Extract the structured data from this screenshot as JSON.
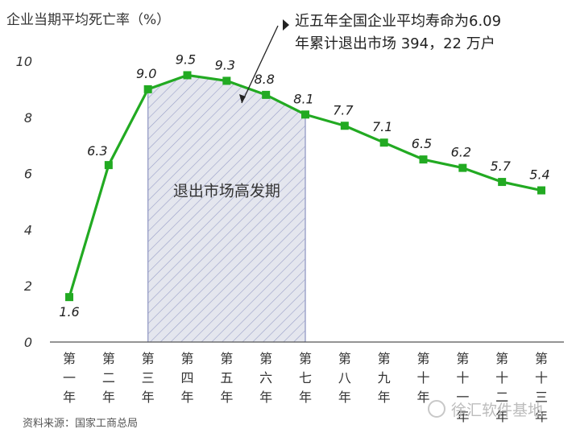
{
  "chart_data": {
    "type": "line",
    "ylabel": "企业当期平均死亡率（%）",
    "ylim": [
      0,
      10
    ],
    "yticks": [
      "0",
      "2",
      "4",
      "6",
      "8",
      "10"
    ],
    "categories": [
      "第一年",
      "第二年",
      "第三年",
      "第四年",
      "第五年",
      "第六年",
      "第七年",
      "第八年",
      "第九年",
      "第十年",
      "第十一年",
      "第十二年",
      "第十三年"
    ],
    "category_stacks": [
      [
        "第",
        "一",
        "年"
      ],
      [
        "第",
        "二",
        "年"
      ],
      [
        "第",
        "三",
        "年"
      ],
      [
        "第",
        "四",
        "年"
      ],
      [
        "第",
        "五",
        "年"
      ],
      [
        "第",
        "六",
        "年"
      ],
      [
        "第",
        "七",
        "年"
      ],
      [
        "第",
        "八",
        "年"
      ],
      [
        "第",
        "九",
        "年"
      ],
      [
        "第",
        "十",
        "年"
      ],
      [
        "第",
        "十",
        "一",
        "年"
      ],
      [
        "第",
        "十",
        "二",
        "年"
      ],
      [
        "第",
        "十",
        "三",
        "年"
      ]
    ],
    "series": [
      {
        "values": [
          1.6,
          6.3,
          9.0,
          9.5,
          9.3,
          8.8,
          8.1,
          7.7,
          7.1,
          6.5,
          6.2,
          5.7,
          5.4
        ],
        "labels": [
          "1.6",
          "6.3",
          "9.0",
          "9.5",
          "9.3",
          "8.8",
          "8.1",
          "7.7",
          "7.1",
          "6.5",
          "6.2",
          "5.7",
          "5.4"
        ],
        "color": "#22aa22"
      }
    ],
    "shaded_region": {
      "from_category": "第三年",
      "to_category": "第七年",
      "label": "退出市场高发期",
      "fill_color": "#e4e6ee",
      "edge_color": "#9aa0c8"
    },
    "annotation": {
      "lines": [
        "近五年全国企业平均寿命为6.09",
        "年累计退出市场 394，22 万户"
      ]
    },
    "grid": false,
    "legend": "none"
  },
  "source": "资料来源：国家工商总局",
  "watermark": "徐汇软件基地"
}
